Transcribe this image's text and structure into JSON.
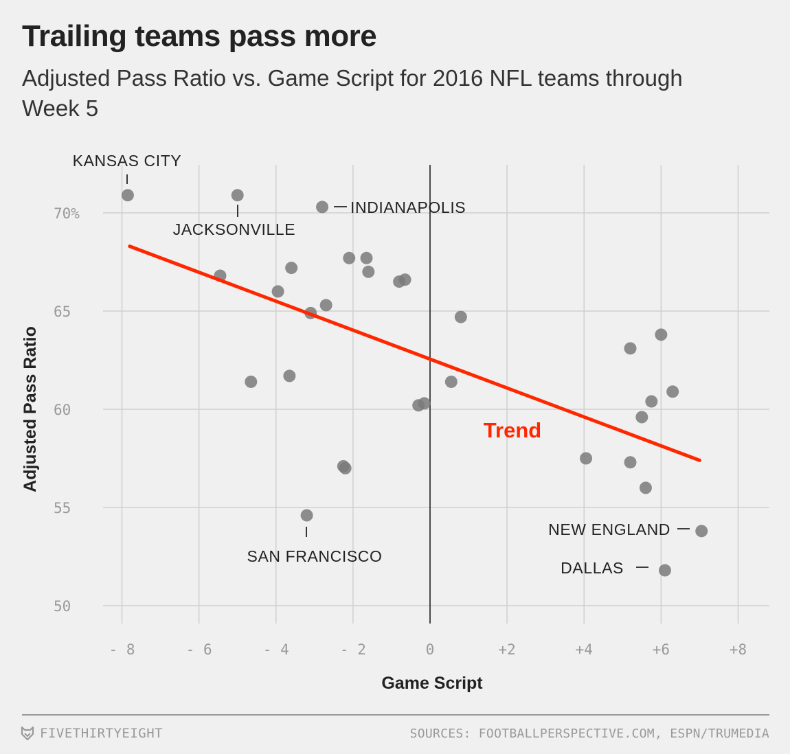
{
  "header": {
    "title": "Trailing teams pass more",
    "subtitle": "Adjusted Pass Ratio vs. Game Script for 2016 NFL teams through Week 5"
  },
  "footer": {
    "brand": "FIVETHIRTYEIGHT",
    "brand_icon": "fivethirtyeight-fox-icon",
    "sources": "SOURCES: FOOTBALLPERSPECTIVE.COM, ESPN/TRUMEDIA"
  },
  "chart_data": {
    "type": "scatter",
    "xlabel": "Game Script",
    "ylabel": "Adjusted Pass Ratio",
    "xlim": [
      -8.5,
      8.8
    ],
    "ylim": [
      48.5,
      72.5
    ],
    "x_ticks": [
      -8,
      -6,
      -4,
      -2,
      0,
      2,
      4,
      6,
      8
    ],
    "x_tick_labels": [
      "- 8",
      "- 6",
      "- 4",
      "- 2",
      "0",
      "+2",
      "+4",
      "+6",
      "+8"
    ],
    "y_ticks": [
      50,
      55,
      60,
      65,
      70
    ],
    "y_tick_labels": [
      "50",
      "55",
      "60",
      "65",
      "70%"
    ],
    "grid": true,
    "zero_line_x": 0,
    "colors": {
      "point": "#7a7a7a",
      "trend": "#ff2700",
      "grid": "#cfcfcf",
      "zero": "#222222",
      "tick": "#999999"
    },
    "points": [
      {
        "x": -7.85,
        "y": 70.9
      },
      {
        "x": -5.0,
        "y": 70.9
      },
      {
        "x": -2.8,
        "y": 70.3
      },
      {
        "x": -5.45,
        "y": 66.8
      },
      {
        "x": -3.6,
        "y": 67.2
      },
      {
        "x": -3.95,
        "y": 66.0
      },
      {
        "x": -2.1,
        "y": 67.7
      },
      {
        "x": -1.65,
        "y": 67.7
      },
      {
        "x": -1.6,
        "y": 67.0
      },
      {
        "x": -0.8,
        "y": 66.5
      },
      {
        "x": -0.65,
        "y": 66.6
      },
      {
        "x": -2.7,
        "y": 65.3
      },
      {
        "x": -3.1,
        "y": 64.9
      },
      {
        "x": 0.8,
        "y": 64.7
      },
      {
        "x": -4.65,
        "y": 61.4
      },
      {
        "x": -3.65,
        "y": 61.7
      },
      {
        "x": 0.55,
        "y": 61.4
      },
      {
        "x": -0.3,
        "y": 60.2
      },
      {
        "x": -0.15,
        "y": 60.3
      },
      {
        "x": -2.25,
        "y": 57.1
      },
      {
        "x": -2.2,
        "y": 57.0
      },
      {
        "x": -3.2,
        "y": 54.6
      },
      {
        "x": 5.2,
        "y": 63.1
      },
      {
        "x": 6.0,
        "y": 63.8
      },
      {
        "x": 6.3,
        "y": 60.9
      },
      {
        "x": 5.75,
        "y": 60.4
      },
      {
        "x": 5.5,
        "y": 59.6
      },
      {
        "x": 4.05,
        "y": 57.5
      },
      {
        "x": 5.2,
        "y": 57.3
      },
      {
        "x": 5.6,
        "y": 56.0
      },
      {
        "x": 7.05,
        "y": 53.8
      },
      {
        "x": 6.1,
        "y": 51.8
      }
    ],
    "trend": {
      "label": "Trend",
      "x1": -7.8,
      "y1": 68.3,
      "x2": 7.0,
      "y2": 57.4
    },
    "annotations": [
      {
        "text": "KANSAS CITY",
        "x": -7.85,
        "y": 70.9
      },
      {
        "text": "JACKSONVILLE",
        "x": -5.0,
        "y": 70.9
      },
      {
        "text": "INDIANAPOLIS",
        "x": -2.8,
        "y": 70.3
      },
      {
        "text": "SAN FRANCISCO",
        "x": -3.2,
        "y": 54.6
      },
      {
        "text": "NEW ENGLAND",
        "x": 7.05,
        "y": 53.8
      },
      {
        "text": "DALLAS",
        "x": 6.1,
        "y": 51.8
      }
    ]
  }
}
